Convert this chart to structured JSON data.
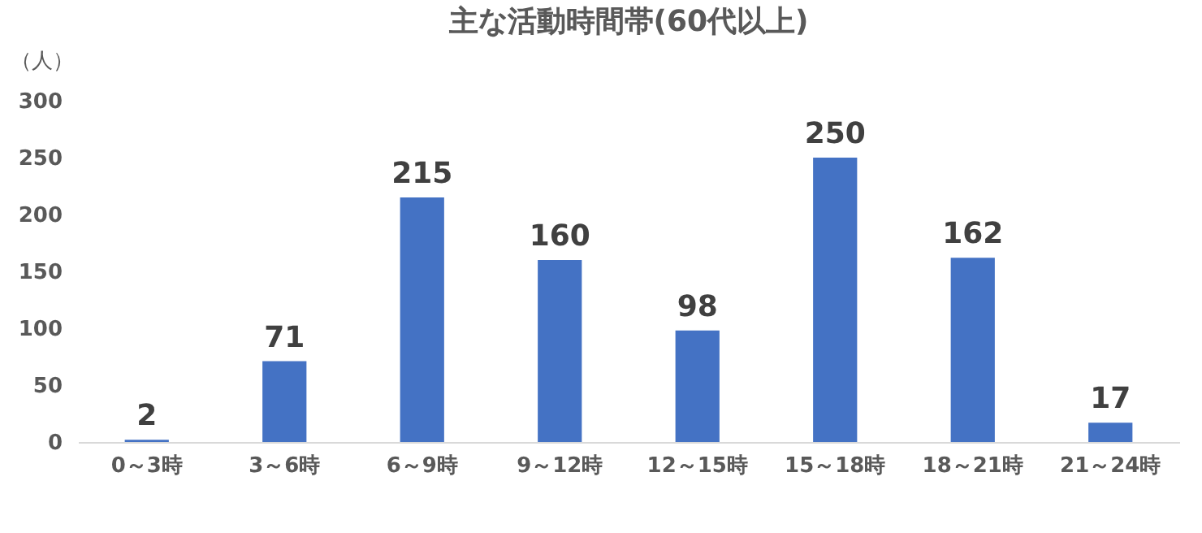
{
  "chart_data": {
    "type": "bar",
    "title": "主な活動時間帯(60代以上)",
    "ylabel": "（人）",
    "categories": [
      "0～3時",
      "3～6時",
      "6～9時",
      "9～12時",
      "12～15時",
      "15～18時",
      "18～21時",
      "21～24時"
    ],
    "values": [
      2,
      71,
      215,
      160,
      98,
      250,
      162,
      17
    ],
    "color": "#4472c4",
    "ylim": [
      0,
      300
    ],
    "yticks": [
      0,
      50,
      100,
      150,
      200,
      250,
      300
    ],
    "grid": false,
    "data_labels": true
  }
}
